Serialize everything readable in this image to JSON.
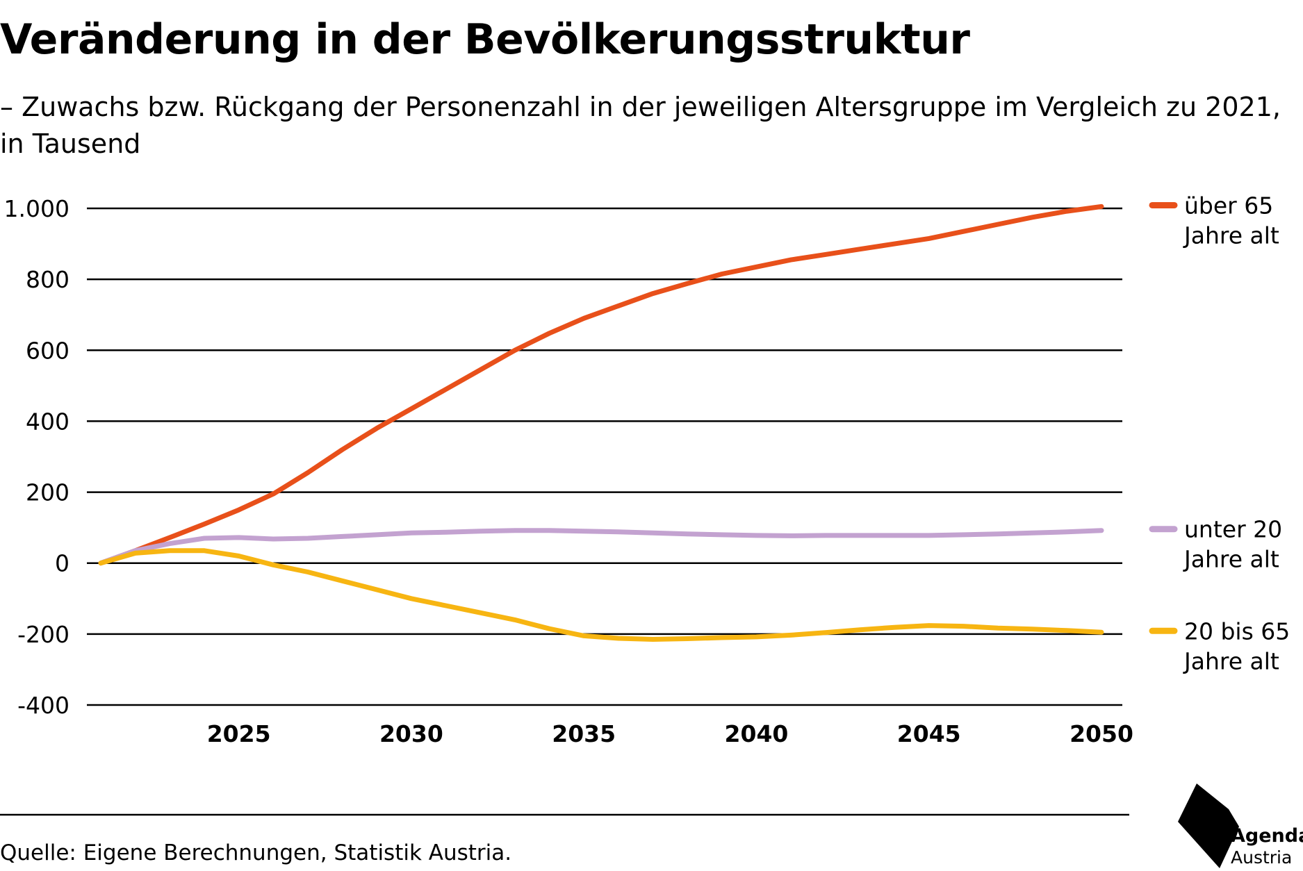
{
  "title": "Veränderung in der Bevölkerungsstruktur",
  "subtitle": "– Zuwachs bzw. Rückgang der Personenzahl in der jeweiligen Altersgruppe im Vergleich zu 2021, in Tausend",
  "source": "Quelle: Eigene Berechnungen, Statistik Austria.",
  "logo": {
    "line1": "Agenda",
    "line2": "Austria"
  },
  "chart_data": {
    "type": "line",
    "xlim": [
      2021,
      2050
    ],
    "ylim": [
      -400,
      1000
    ],
    "x_ticks": [
      2025,
      2030,
      2035,
      2040,
      2045,
      2050
    ],
    "y_ticks": [
      1000,
      800,
      600,
      400,
      200,
      0,
      -200,
      -400
    ],
    "y_tick_labels": [
      "1.000",
      "800",
      "600",
      "400",
      "200",
      "0",
      "-200",
      "-400"
    ],
    "grid": true,
    "legend_placement": "right, next to line ends",
    "x": [
      2021,
      2022,
      2023,
      2024,
      2025,
      2026,
      2027,
      2028,
      2029,
      2030,
      2031,
      2032,
      2033,
      2034,
      2035,
      2036,
      2037,
      2038,
      2039,
      2040,
      2041,
      2042,
      2043,
      2044,
      2045,
      2046,
      2047,
      2048,
      2049,
      2050
    ],
    "series": [
      {
        "name": "über 65 Jahre alt",
        "label_lines": [
          "über 65",
          "Jahre alt"
        ],
        "color": "#e8501a",
        "values": [
          0,
          35,
          72,
          110,
          150,
          195,
          255,
          320,
          380,
          435,
          490,
          545,
          600,
          648,
          690,
          725,
          760,
          788,
          815,
          835,
          855,
          870,
          885,
          900,
          915,
          935,
          955,
          975,
          992,
          1005
        ]
      },
      {
        "name": "unter 20 Jahre alt",
        "label_lines": [
          "unter 20",
          "Jahre alt"
        ],
        "color": "#c3a2d0",
        "values": [
          0,
          35,
          55,
          70,
          72,
          68,
          70,
          75,
          80,
          85,
          87,
          90,
          92,
          92,
          90,
          88,
          85,
          82,
          80,
          78,
          77,
          78,
          78,
          78,
          78,
          80,
          82,
          85,
          88,
          92
        ]
      },
      {
        "name": "20 bis 65 Jahre alt",
        "label_lines": [
          "20 bis 65",
          "Jahre alt"
        ],
        "color": "#f7b512",
        "values": [
          0,
          28,
          35,
          35,
          20,
          -5,
          -25,
          -50,
          -75,
          -100,
          -120,
          -140,
          -160,
          -185,
          -205,
          -212,
          -215,
          -213,
          -210,
          -208,
          -203,
          -196,
          -188,
          -181,
          -176,
          -178,
          -183,
          -186,
          -190,
          -195
        ]
      }
    ]
  }
}
